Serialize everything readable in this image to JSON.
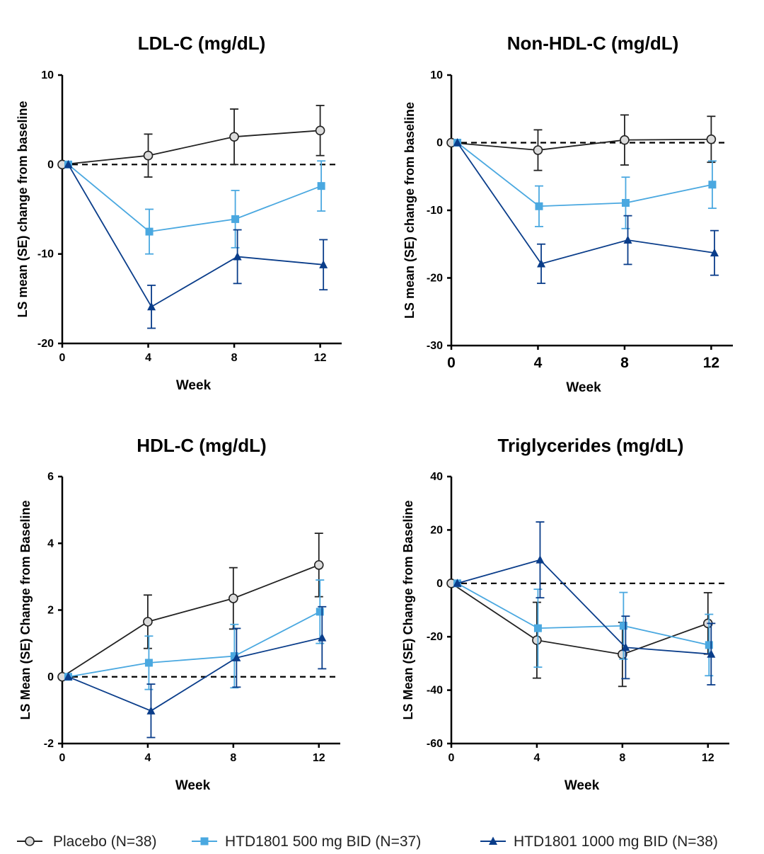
{
  "colors": {
    "placebo": "#222222",
    "dose500": "#4aa8e0",
    "dose1000": "#0a3d8a",
    "marker_placebo_fill": "#dcdcdc"
  },
  "legend": [
    {
      "key": "placebo",
      "label": "Placebo (N=38)",
      "marker": "circle"
    },
    {
      "key": "dose500",
      "label": "HTD1801 500 mg BID (N=37)",
      "marker": "square"
    },
    {
      "key": "dose1000",
      "label": "HTD1801 1000 mg BID (N=38)",
      "marker": "triangle"
    }
  ],
  "chart_data": [
    {
      "type": "line",
      "title": "LDL-C (mg/dL)",
      "xlabel": "Week",
      "ylabel": "LS mean (SE) change from baseline",
      "x": [
        0,
        4,
        8,
        12
      ],
      "xticks": [
        "0",
        "4",
        "8",
        "12"
      ],
      "xlim": [
        0,
        13
      ],
      "ylim": [
        -20,
        10
      ],
      "yticks": [
        "-20",
        "-10",
        "0",
        "10"
      ],
      "reference_line_y": 0,
      "series": [
        {
          "name": "Placebo (N=38)",
          "key": "placebo",
          "values": [
            0,
            1.0,
            3.1,
            3.8
          ],
          "se": [
            0,
            2.4,
            3.1,
            2.8
          ]
        },
        {
          "name": "HTD1801 500 mg BID (N=37)",
          "key": "dose500",
          "values": [
            0,
            -7.5,
            -6.1,
            -2.4
          ],
          "se": [
            0,
            2.5,
            3.2,
            2.8
          ]
        },
        {
          "name": "HTD1801 1000 mg BID (N=38)",
          "key": "dose1000",
          "values": [
            0,
            -15.9,
            -10.3,
            -11.2
          ],
          "se": [
            0,
            2.4,
            3.0,
            2.8
          ]
        }
      ]
    },
    {
      "type": "line",
      "title": "Non-HDL-C (mg/dL)",
      "xlabel": "Week",
      "ylabel": "LS mean (SE) change from baseline",
      "x": [
        0,
        4,
        8,
        12
      ],
      "xticks": [
        "0",
        "4",
        "8",
        "12"
      ],
      "xlim": [
        0,
        13
      ],
      "ylim": [
        -30,
        10
      ],
      "yticks": [
        "-30",
        "-20",
        "-10",
        "0",
        "10"
      ],
      "reference_line_y": 0,
      "series": [
        {
          "name": "Placebo (N=38)",
          "key": "placebo",
          "values": [
            0,
            -1.1,
            0.4,
            0.5
          ],
          "se": [
            0,
            3.0,
            3.7,
            3.4
          ]
        },
        {
          "name": "HTD1801 500 mg BID (N=37)",
          "key": "dose500",
          "values": [
            0,
            -9.4,
            -8.9,
            -6.2
          ],
          "se": [
            0,
            3.0,
            3.8,
            3.5
          ]
        },
        {
          "name": "HTD1801 1000 mg BID (N=38)",
          "key": "dose1000",
          "values": [
            0,
            -17.9,
            -14.4,
            -16.3
          ],
          "se": [
            0,
            2.9,
            3.6,
            3.3
          ]
        }
      ]
    },
    {
      "type": "line",
      "title": "HDL-C (mg/dL)",
      "xlabel": "Week",
      "ylabel": "LS Mean (SE) Change from Baseline",
      "x": [
        0,
        4,
        8,
        12
      ],
      "xticks": [
        "0",
        "4",
        "8",
        "12"
      ],
      "xlim": [
        0,
        13
      ],
      "ylim": [
        -2,
        6
      ],
      "yticks": [
        "-2",
        "0",
        "2",
        "4",
        "6"
      ],
      "reference_line_y": 0,
      "series": [
        {
          "name": "Placebo (N=38)",
          "key": "placebo",
          "values": [
            0,
            1.65,
            2.35,
            3.35
          ],
          "se": [
            0,
            0.8,
            0.92,
            0.95
          ]
        },
        {
          "name": "HTD1801 500 mg BID (N=37)",
          "key": "dose500",
          "values": [
            0,
            0.42,
            0.62,
            1.95
          ],
          "se": [
            0,
            0.8,
            0.95,
            0.95
          ]
        },
        {
          "name": "HTD1801 1000 mg BID (N=38)",
          "key": "dose1000",
          "values": [
            0,
            -1.02,
            0.57,
            1.17
          ],
          "se": [
            0,
            0.8,
            0.88,
            0.93
          ]
        }
      ]
    },
    {
      "type": "line",
      "title": "Triglycerides (mg/dL)",
      "xlabel": "Week",
      "ylabel": "LS Mean (SE) Change from Baseline",
      "x": [
        0,
        4,
        8,
        12
      ],
      "xticks": [
        "0",
        "4",
        "8",
        "12"
      ],
      "xlim": [
        0,
        13
      ],
      "ylim": [
        -60,
        40
      ],
      "yticks": [
        "-60",
        "-40",
        "-20",
        "0",
        "20",
        "40"
      ],
      "reference_line_y": 0,
      "series": [
        {
          "name": "Placebo (N=38)",
          "key": "placebo",
          "values": [
            0,
            -21.3,
            -26.6,
            -15.0
          ],
          "se": [
            0,
            14.2,
            12.0,
            11.5
          ]
        },
        {
          "name": "HTD1801 500 mg BID (N=37)",
          "key": "dose500",
          "values": [
            0,
            -16.8,
            -15.9,
            -23.1
          ],
          "se": [
            0,
            14.6,
            12.5,
            11.5
          ]
        },
        {
          "name": "HTD1801 1000 mg BID (N=38)",
          "key": "dose1000",
          "values": [
            0,
            8.8,
            -24.0,
            -26.5
          ],
          "se": [
            0,
            14.2,
            11.7,
            11.5
          ]
        }
      ]
    }
  ]
}
